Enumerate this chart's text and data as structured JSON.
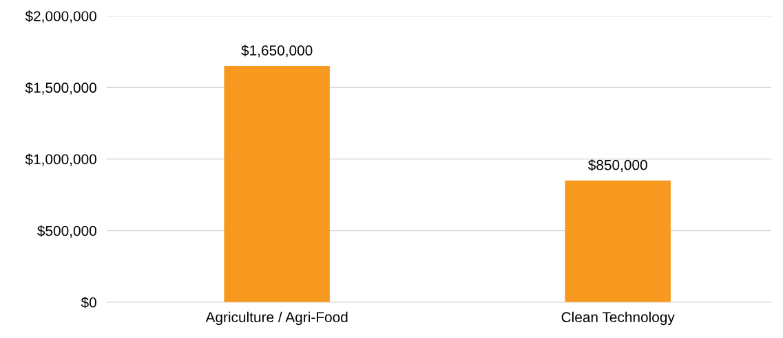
{
  "chart_data": {
    "type": "bar",
    "categories": [
      "Agriculture / Agri-Food",
      "Clean Technology"
    ],
    "values": [
      1650000,
      850000
    ],
    "value_labels": [
      "$1,650,000",
      "$850,000"
    ],
    "color": "#f7991f",
    "ylim": [
      0,
      2000000
    ],
    "yticks": [
      {
        "value": 0,
        "label": "$0"
      },
      {
        "value": 500000,
        "label": "$500,000"
      },
      {
        "value": 1000000,
        "label": "$1,000,000"
      },
      {
        "value": 1500000,
        "label": "$1,500,000"
      },
      {
        "value": 2000000,
        "label": "$2,000,000"
      }
    ],
    "grid": "y",
    "legend": false
  }
}
